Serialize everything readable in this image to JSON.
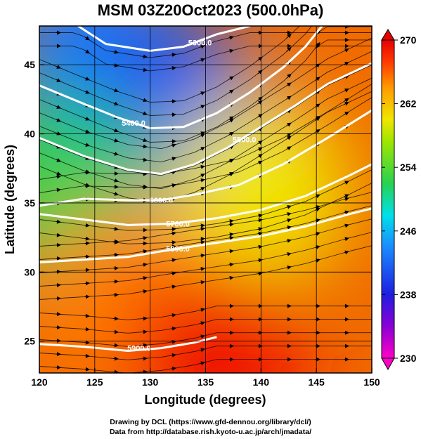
{
  "title": "MSM 03Z20Oct2023 (500.0hPa)",
  "credits": {
    "line1": "Drawing by DCL (https://www.gfd-dennou.org/library/dcl/)",
    "line2": "Data from http://database.rish.kyoto-u.ac.jp/arch/jmadata/"
  },
  "chart_data": {
    "type": "heatmap",
    "title": "MSM 03Z20Oct2023 (500.0hPa)",
    "xlabel": "Longitude (degrees)",
    "ylabel": "Latitude  (degrees)",
    "xlim": [
      120,
      150
    ],
    "ylim": [
      22.7,
      47.8
    ],
    "x_ticks": [
      120,
      125,
      130,
      135,
      140,
      145,
      150
    ],
    "y_ticks": [
      25,
      30,
      35,
      40,
      45
    ],
    "grid": true,
    "colorbar": {
      "range": [
        230,
        270
      ],
      "ticks": [
        230,
        238,
        246,
        254,
        262,
        270
      ],
      "colormap": [
        "#ff00c8",
        "#8a00d4",
        "#1e1ee0",
        "#1a8cff",
        "#00e0e8",
        "#28d250",
        "#9ee600",
        "#f0e600",
        "#ff9a00",
        "#ff3c00",
        "#e80000"
      ]
    },
    "field_description_levels": [
      {
        "lon": 125,
        "lat": 46,
        "value": 243
      },
      {
        "lon": 132,
        "lat": 42,
        "value": 241
      },
      {
        "lon": 122,
        "lat": 36,
        "value": 252
      },
      {
        "lon": 140,
        "lat": 36,
        "value": 260
      },
      {
        "lon": 128,
        "lat": 28,
        "value": 265
      },
      {
        "lon": 136,
        "lat": 24,
        "value": 269
      }
    ],
    "contours": [
      {
        "label": "5300.0",
        "points": [
          [
            123.5,
            47.8
          ],
          [
            126,
            46.5
          ],
          [
            130,
            46
          ],
          [
            133,
            46.3
          ],
          [
            136,
            47.2
          ],
          [
            139,
            47.8
          ]
        ],
        "label_at": [
          134.5,
          46.6
        ]
      },
      {
        "label": "5400.0",
        "points": [
          [
            120,
            43.5
          ],
          [
            123,
            42.5
          ],
          [
            127,
            41.2
          ],
          [
            130,
            40.4
          ],
          [
            133,
            40.5
          ],
          [
            136,
            41.5
          ],
          [
            139,
            43
          ],
          [
            142,
            44.8
          ],
          [
            144,
            46.3
          ],
          [
            145.5,
            47.8
          ]
        ],
        "label_at": [
          128.5,
          40.8
        ]
      },
      {
        "label": "5500.0",
        "points": [
          [
            120,
            39.7
          ],
          [
            124,
            38.4
          ],
          [
            128,
            37.4
          ],
          [
            131,
            37.1
          ],
          [
            134,
            37.8
          ],
          [
            137,
            39
          ],
          [
            140,
            40.5
          ],
          [
            143,
            42
          ],
          [
            146,
            43.6
          ],
          [
            150,
            45.1
          ]
        ],
        "label_at": [
          138.5,
          39.6
        ]
      },
      {
        "label": "5600.0",
        "points": [
          [
            120,
            34.8
          ],
          [
            124,
            35.3
          ],
          [
            128,
            35.2
          ],
          [
            131,
            35.2
          ],
          [
            134,
            35.6
          ],
          [
            138,
            36.3
          ],
          [
            142,
            37.8
          ],
          [
            146,
            39.7
          ],
          [
            150,
            41.7
          ]
        ],
        "label_at": [
          131,
          35.2
        ]
      },
      {
        "label": "5700.0",
        "points": [
          [
            120,
            34.2
          ],
          [
            124,
            33.8
          ],
          [
            128,
            33.4
          ],
          [
            132,
            33.5
          ],
          [
            136,
            33.9
          ],
          [
            140,
            34.5
          ],
          [
            144,
            35.5
          ],
          [
            148,
            37
          ],
          [
            150,
            37.8
          ]
        ],
        "label_at": [
          132.5,
          33.5
        ]
      },
      {
        "label": "5800.0",
        "points": [
          [
            120,
            30.7
          ],
          [
            124,
            30.9
          ],
          [
            128,
            31.1
          ],
          [
            131,
            31.5
          ],
          [
            135,
            32
          ],
          [
            140,
            32.6
          ],
          [
            144,
            33.3
          ],
          [
            148,
            34.2
          ],
          [
            150,
            34.6
          ]
        ],
        "label_at": [
          132.5,
          31.7
        ]
      },
      {
        "label": "5900.0",
        "points": [
          [
            120,
            24.8
          ],
          [
            124,
            24.6
          ],
          [
            128,
            24.3
          ],
          [
            131,
            24.5
          ],
          [
            134,
            24.9
          ],
          [
            136,
            25.3
          ]
        ],
        "label_at": [
          129,
          24.5
        ]
      }
    ]
  }
}
